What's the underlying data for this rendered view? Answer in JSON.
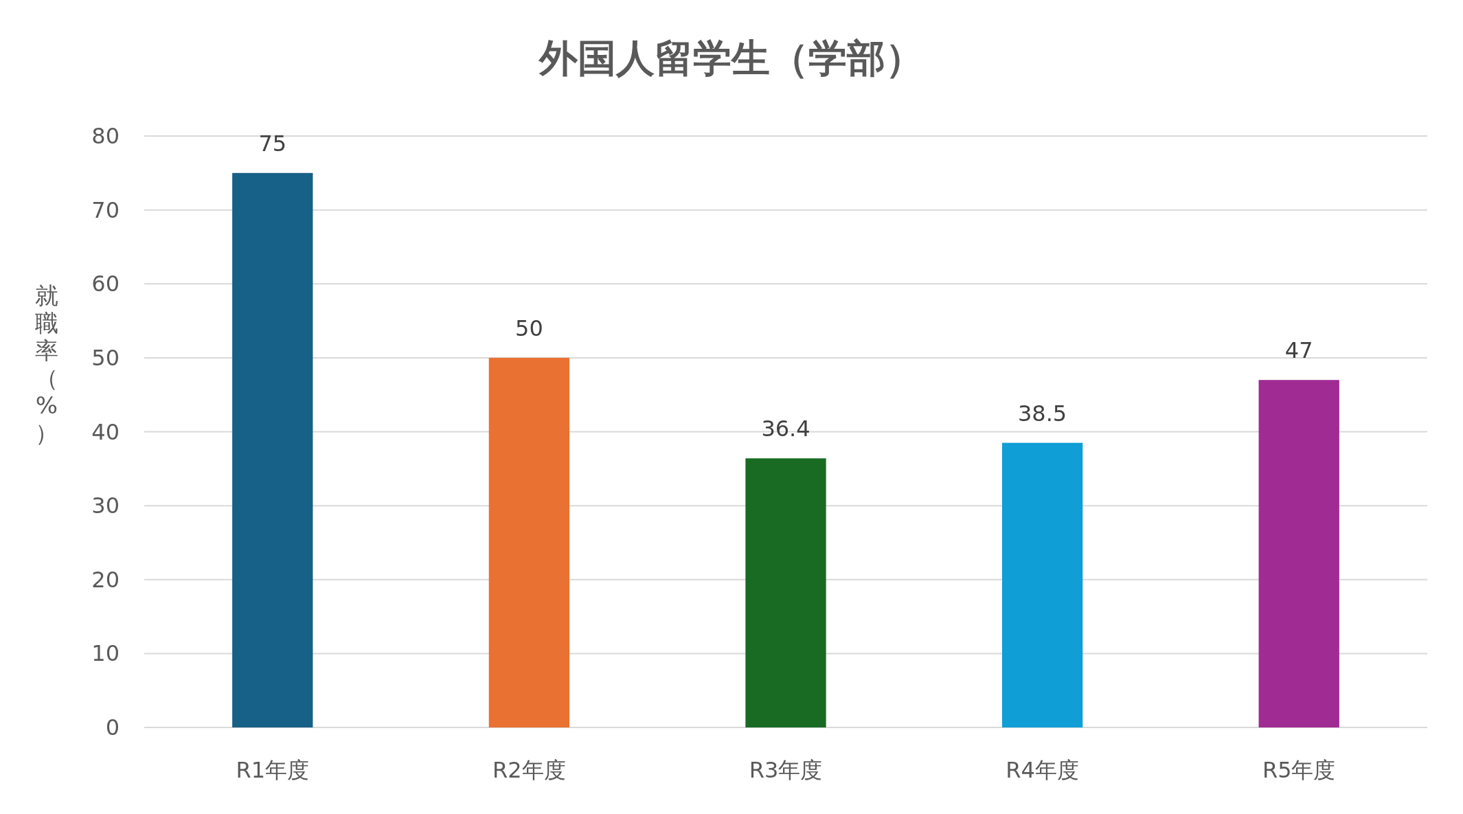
{
  "chart_data": {
    "type": "bar",
    "title": "外国人留学生（学部）",
    "ylabel": "就職率（%）",
    "categories": [
      "R1年度",
      "R2年度",
      "R3年度",
      "R4年度",
      "R5年度"
    ],
    "values": [
      75,
      50,
      36.4,
      38.5,
      47
    ],
    "colors": [
      "#176087",
      "#e97132",
      "#196b24",
      "#0f9ed5",
      "#a02b93"
    ],
    "ylim": [
      0,
      80
    ],
    "yticks": [
      0,
      10,
      20,
      30,
      40,
      50,
      60,
      70,
      80
    ],
    "grid": "y",
    "data_labels": true
  }
}
